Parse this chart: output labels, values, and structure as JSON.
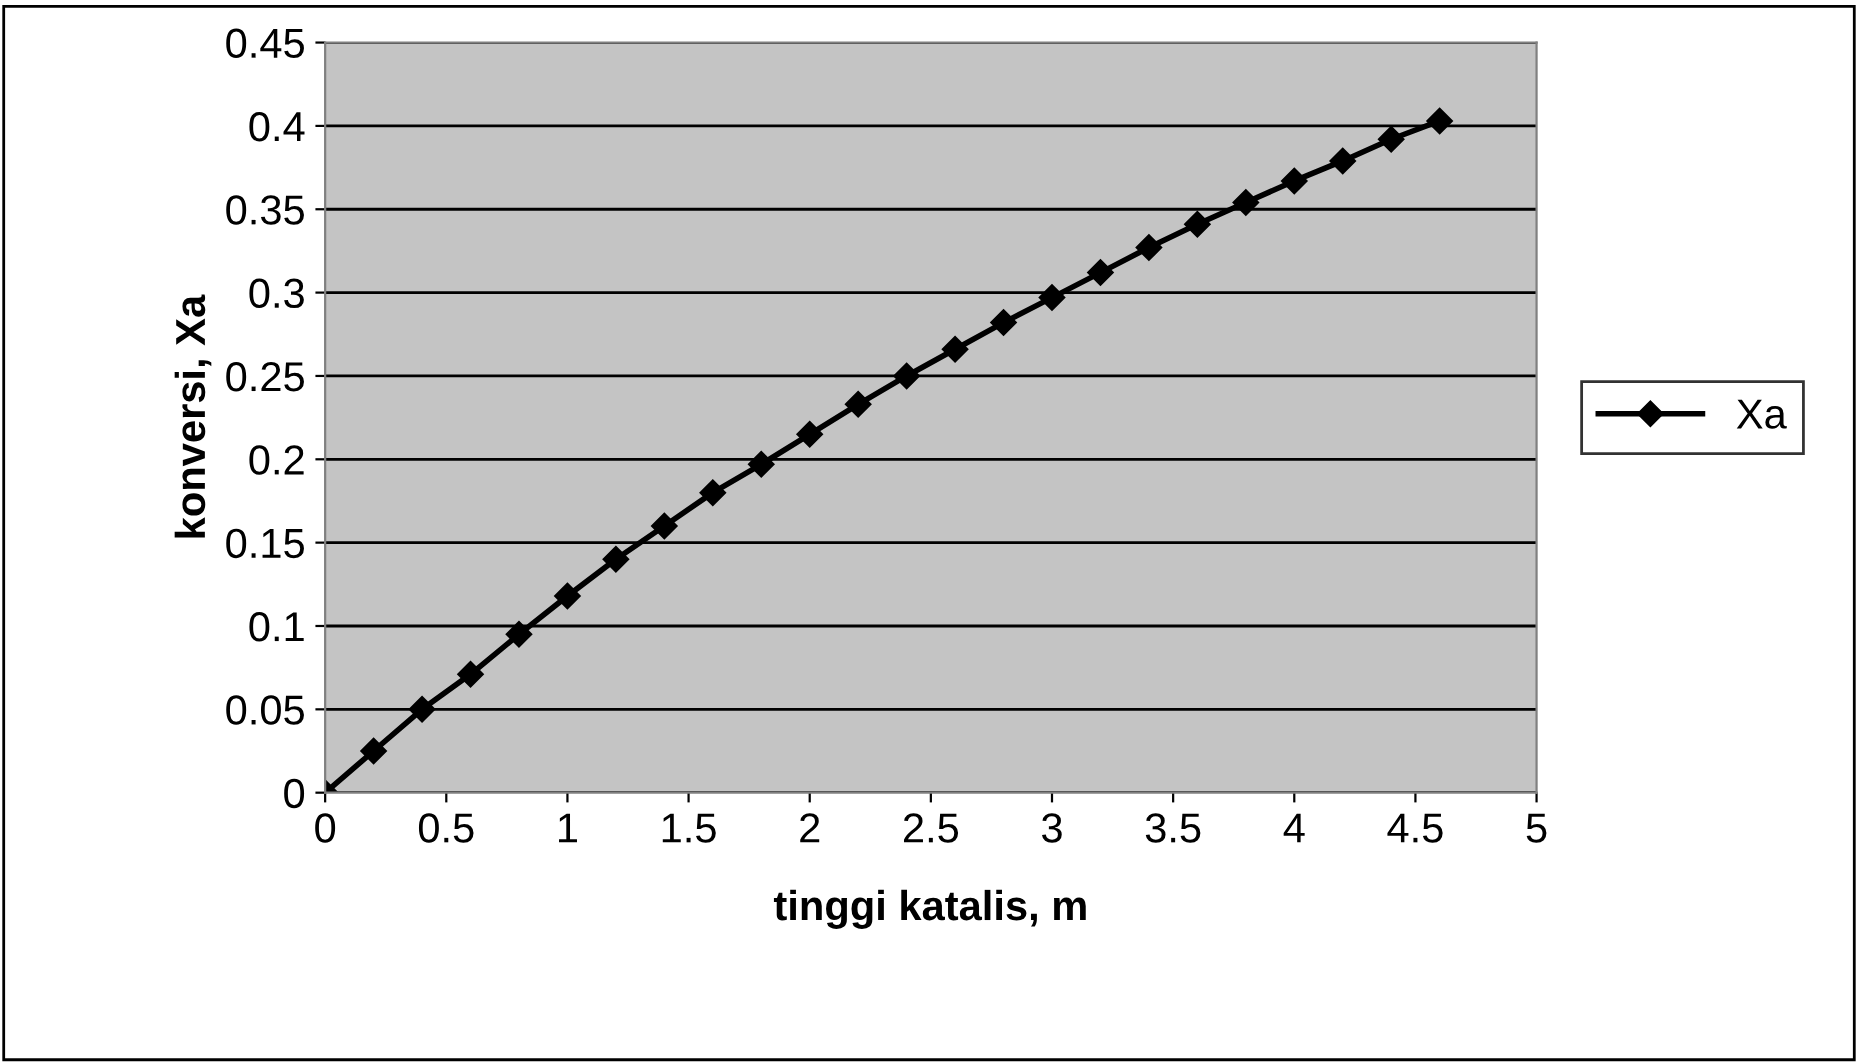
{
  "chart_data": {
    "type": "line",
    "xlabel": "tinggi katalis, m",
    "ylabel": "konversi, Xa",
    "x": [
      0,
      0.2,
      0.4,
      0.6,
      0.8,
      1.0,
      1.2,
      1.4,
      1.6,
      1.8,
      2.0,
      2.2,
      2.4,
      2.6,
      2.8,
      3.0,
      3.2,
      3.4,
      3.6,
      3.8,
      4.0,
      4.2,
      4.4,
      4.6
    ],
    "series": [
      {
        "name": "Xa",
        "color": "#000000",
        "values": [
          0,
          0.025,
          0.05,
          0.071,
          0.095,
          0.118,
          0.14,
          0.16,
          0.18,
          0.197,
          0.215,
          0.233,
          0.25,
          0.266,
          0.282,
          0.297,
          0.312,
          0.327,
          0.341,
          0.354,
          0.367,
          0.379,
          0.392,
          0.403
        ]
      }
    ],
    "xlim": [
      0,
      5
    ],
    "xticks": [
      0,
      0.5,
      1,
      1.5,
      2,
      2.5,
      3,
      3.5,
      4,
      4.5,
      5
    ],
    "ylim": [
      0,
      0.45
    ],
    "yticks": [
      0,
      0.05,
      0.1,
      0.15,
      0.2,
      0.25,
      0.3,
      0.35,
      0.4,
      0.45
    ],
    "grid": "y",
    "legend": "right",
    "marker": "diamond",
    "line_style": "solid"
  }
}
